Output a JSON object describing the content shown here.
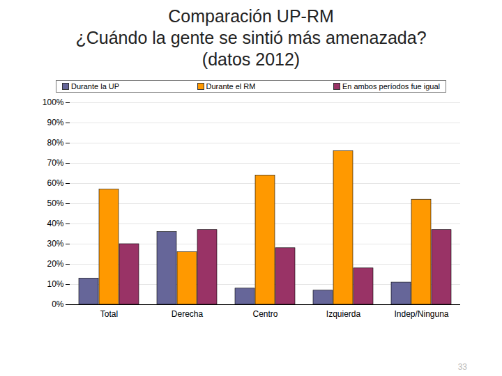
{
  "chart_data": {
    "type": "bar",
    "title": "Comparación UP-RM",
    "subtitle": [
      "¿Cuándo la gente se sintió más amenazada?",
      "(datos 2012)"
    ],
    "categories": [
      "Total",
      "Derecha",
      "Centro",
      "Izquierda",
      "Indep/Ninguna"
    ],
    "series": [
      {
        "name": "Durante la UP",
        "color": "#666699",
        "values": [
          13,
          36,
          8,
          7,
          11
        ]
      },
      {
        "name": "Durante el RM",
        "color": "#ff9900",
        "values": [
          57,
          26,
          64,
          76,
          52
        ]
      },
      {
        "name": "En ambos períodos fue igual",
        "color": "#993366",
        "values": [
          30,
          37,
          28,
          18,
          37
        ]
      }
    ],
    "ylim": [
      0,
      100
    ],
    "yticks": [
      {
        "value": 0,
        "label": "0%"
      },
      {
        "value": 10,
        "label": "10%"
      },
      {
        "value": 20,
        "label": "20%"
      },
      {
        "value": 30,
        "label": "30%"
      },
      {
        "value": 40,
        "label": "40%"
      },
      {
        "value": 50,
        "label": "50%"
      },
      {
        "value": 60,
        "label": "60%"
      },
      {
        "value": 70,
        "label": "70%"
      },
      {
        "value": 80,
        "label": "80%"
      },
      {
        "value": 90,
        "label": "90%"
      },
      {
        "value": 100,
        "label": "100%"
      }
    ],
    "grid": true,
    "legend": "top",
    "annotations": [
      "33"
    ]
  }
}
